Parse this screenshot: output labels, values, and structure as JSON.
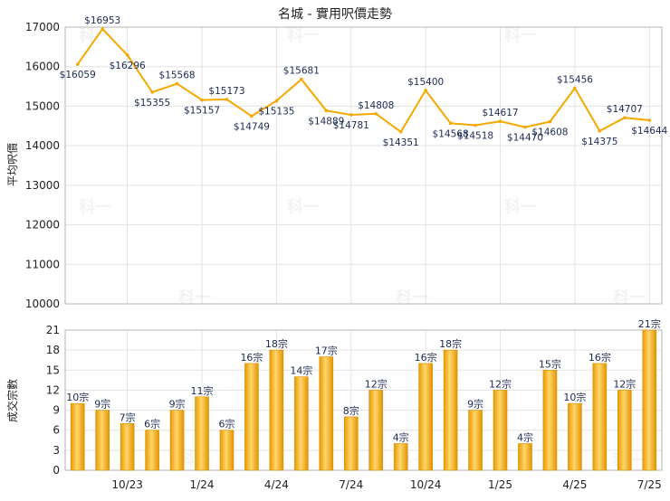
{
  "chart_data": [
    {
      "type": "line",
      "title": "名城 - 實用呎價走勢",
      "ylabel": "平均呎價",
      "xlabel": "",
      "ylim": [
        10000,
        17000
      ],
      "yticks": [
        10000,
        11000,
        12000,
        13000,
        14000,
        15000,
        16000,
        17000
      ],
      "grid": true,
      "color": "#f5a800",
      "values": [
        16059,
        16953,
        16296,
        15355,
        15568,
        15157,
        15173,
        14749,
        15135,
        15681,
        14889,
        14781,
        14808,
        14351,
        15400,
        14568,
        14518,
        14617,
        14470,
        14608,
        15456,
        14375,
        14707,
        14644
      ],
      "labels": [
        "$16059",
        "$16953",
        "$16296",
        "$15355",
        "$15568",
        "$15157",
        "$15173",
        "$14749",
        "$15135",
        "$15681",
        "$14889",
        "$14781",
        "$14808",
        "$14351",
        "$15400",
        "$14568",
        "$14518",
        "$14617",
        "$14470",
        "$14608",
        "$15456",
        "$14375",
        "$14707",
        "$14644"
      ]
    },
    {
      "type": "bar",
      "title": "",
      "ylabel": "成交宗數",
      "xlabel": "",
      "ylim": [
        0,
        21
      ],
      "yticks": [
        0,
        3,
        6,
        9,
        12,
        15,
        18,
        21
      ],
      "grid": true,
      "color": "#f5a800",
      "categories": [
        "",
        "",
        "10/23",
        "",
        "",
        "1/24",
        "",
        "",
        "4/24",
        "",
        "",
        "7/24",
        "",
        "",
        "10/24",
        "",
        "",
        "1/25",
        "",
        "",
        "4/25",
        "",
        "",
        "7/25"
      ],
      "values": [
        10,
        9,
        7,
        6,
        9,
        11,
        6,
        16,
        18,
        14,
        17,
        8,
        12,
        4,
        16,
        18,
        9,
        12,
        4,
        15,
        10,
        16,
        12,
        21
      ],
      "labels": [
        "10宗",
        "9宗",
        "7宗",
        "6宗",
        "9宗",
        "11宗",
        "6宗",
        "16宗",
        "18宗",
        "14宗",
        "17宗",
        "8宗",
        "12宗",
        "4宗",
        "16宗",
        "18宗",
        "9宗",
        "12宗",
        "4宗",
        "15宗",
        "10宗",
        "16宗",
        "12宗",
        "21宗"
      ]
    }
  ],
  "watermark": "科一"
}
